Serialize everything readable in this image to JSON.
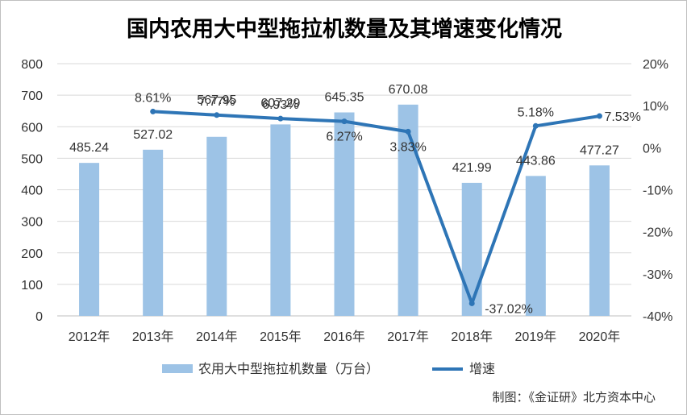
{
  "chart_data": {
    "type": "bar",
    "title": "国内农用大中型拖拉机数量及其增速变化情况",
    "categories": [
      "2012年",
      "2013年",
      "2014年",
      "2015年",
      "2016年",
      "2017年",
      "2018年",
      "2019年",
      "2020年"
    ],
    "series": [
      {
        "name": "农用大中型拖拉机数量（万台）",
        "type": "bar",
        "axis": "left",
        "color": "#9dc3e6",
        "values": [
          485.24,
          527.02,
          567.95,
          607.29,
          645.35,
          670.08,
          421.99,
          443.86,
          477.27
        ],
        "labels": [
          "485.24",
          "527.02",
          "567.95",
          "607.29",
          "645.35",
          "670.08",
          "421.99",
          "443.86",
          "477.27"
        ]
      },
      {
        "name": "增速",
        "type": "line",
        "axis": "right",
        "color": "#2e75b6",
        "values": [
          null,
          8.61,
          7.77,
          6.93,
          6.27,
          3.83,
          -37.02,
          5.18,
          7.53
        ],
        "labels": [
          "",
          "8.61%",
          "7.77%",
          "6.93%",
          "6.27%",
          "3.83%",
          "-37.02%",
          "5.18%",
          "7.53%"
        ]
      }
    ],
    "y_left": {
      "ylim": [
        0,
        800
      ],
      "ticks": [
        0,
        100,
        200,
        300,
        400,
        500,
        600,
        700,
        800
      ],
      "tick_labels": [
        "0",
        "100",
        "200",
        "300",
        "400",
        "500",
        "600",
        "700",
        "800"
      ]
    },
    "y_right": {
      "ylim": [
        -40,
        20
      ],
      "ticks": [
        -40,
        -30,
        -20,
        -10,
        0,
        10,
        20
      ],
      "tick_labels": [
        "-40%",
        "-30%",
        "-20%",
        "-10%",
        "0%",
        "10%",
        "20%"
      ]
    },
    "grid": true,
    "legend": "bottom",
    "note": "制图：《金证研》北方资本中心"
  }
}
